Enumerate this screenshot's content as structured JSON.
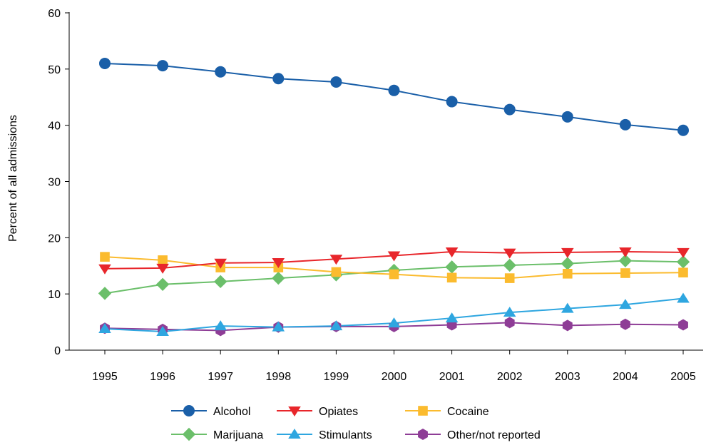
{
  "chart_data": {
    "type": "line",
    "title": "",
    "xlabel": "",
    "ylabel": "Percent of all admissions",
    "x": [
      1995,
      1996,
      1997,
      1998,
      1999,
      2000,
      2001,
      2002,
      2003,
      2004,
      2005
    ],
    "x_tick_labels": [
      "1995",
      "1996",
      "1997",
      "1998",
      "1999",
      "2000",
      "2001",
      "2002",
      "2003",
      "2004",
      "2005"
    ],
    "ylim": [
      0,
      60
    ],
    "y_ticks": [
      0,
      10,
      20,
      30,
      40,
      50,
      60
    ],
    "y_tick_labels": [
      "0",
      "10",
      "20",
      "30",
      "40",
      "50",
      "60"
    ],
    "grid": false,
    "legend_position": "bottom",
    "series": [
      {
        "name": "Alcohol",
        "color": "#1a5fa8",
        "marker": "circle",
        "values": [
          51.0,
          50.6,
          49.5,
          48.3,
          47.7,
          46.2,
          44.2,
          42.8,
          41.5,
          40.1,
          39.1
        ]
      },
      {
        "name": "Opiates",
        "color": "#e8262b",
        "marker": "triangle-down",
        "values": [
          14.5,
          14.6,
          15.5,
          15.6,
          16.2,
          16.8,
          17.5,
          17.3,
          17.4,
          17.5,
          17.4
        ]
      },
      {
        "name": "Cocaine",
        "color": "#fbbb2e",
        "marker": "square",
        "values": [
          16.6,
          16.0,
          14.7,
          14.7,
          13.9,
          13.5,
          12.9,
          12.8,
          13.6,
          13.7,
          13.8
        ]
      },
      {
        "name": "Marijuana",
        "color": "#6bbf6a",
        "marker": "diamond",
        "values": [
          10.1,
          11.7,
          12.2,
          12.8,
          13.4,
          14.2,
          14.8,
          15.1,
          15.4,
          15.9,
          15.7
        ]
      },
      {
        "name": "Stimulants",
        "color": "#2ea6e0",
        "marker": "triangle-up",
        "values": [
          3.8,
          3.3,
          4.3,
          4.1,
          4.3,
          4.8,
          5.7,
          6.7,
          7.4,
          8.1,
          9.2
        ]
      },
      {
        "name": "Other/not reported",
        "color": "#8e3d96",
        "marker": "hexagon",
        "values": [
          3.9,
          3.7,
          3.5,
          4.1,
          4.2,
          4.2,
          4.5,
          4.9,
          4.4,
          4.6,
          4.5
        ]
      }
    ]
  }
}
